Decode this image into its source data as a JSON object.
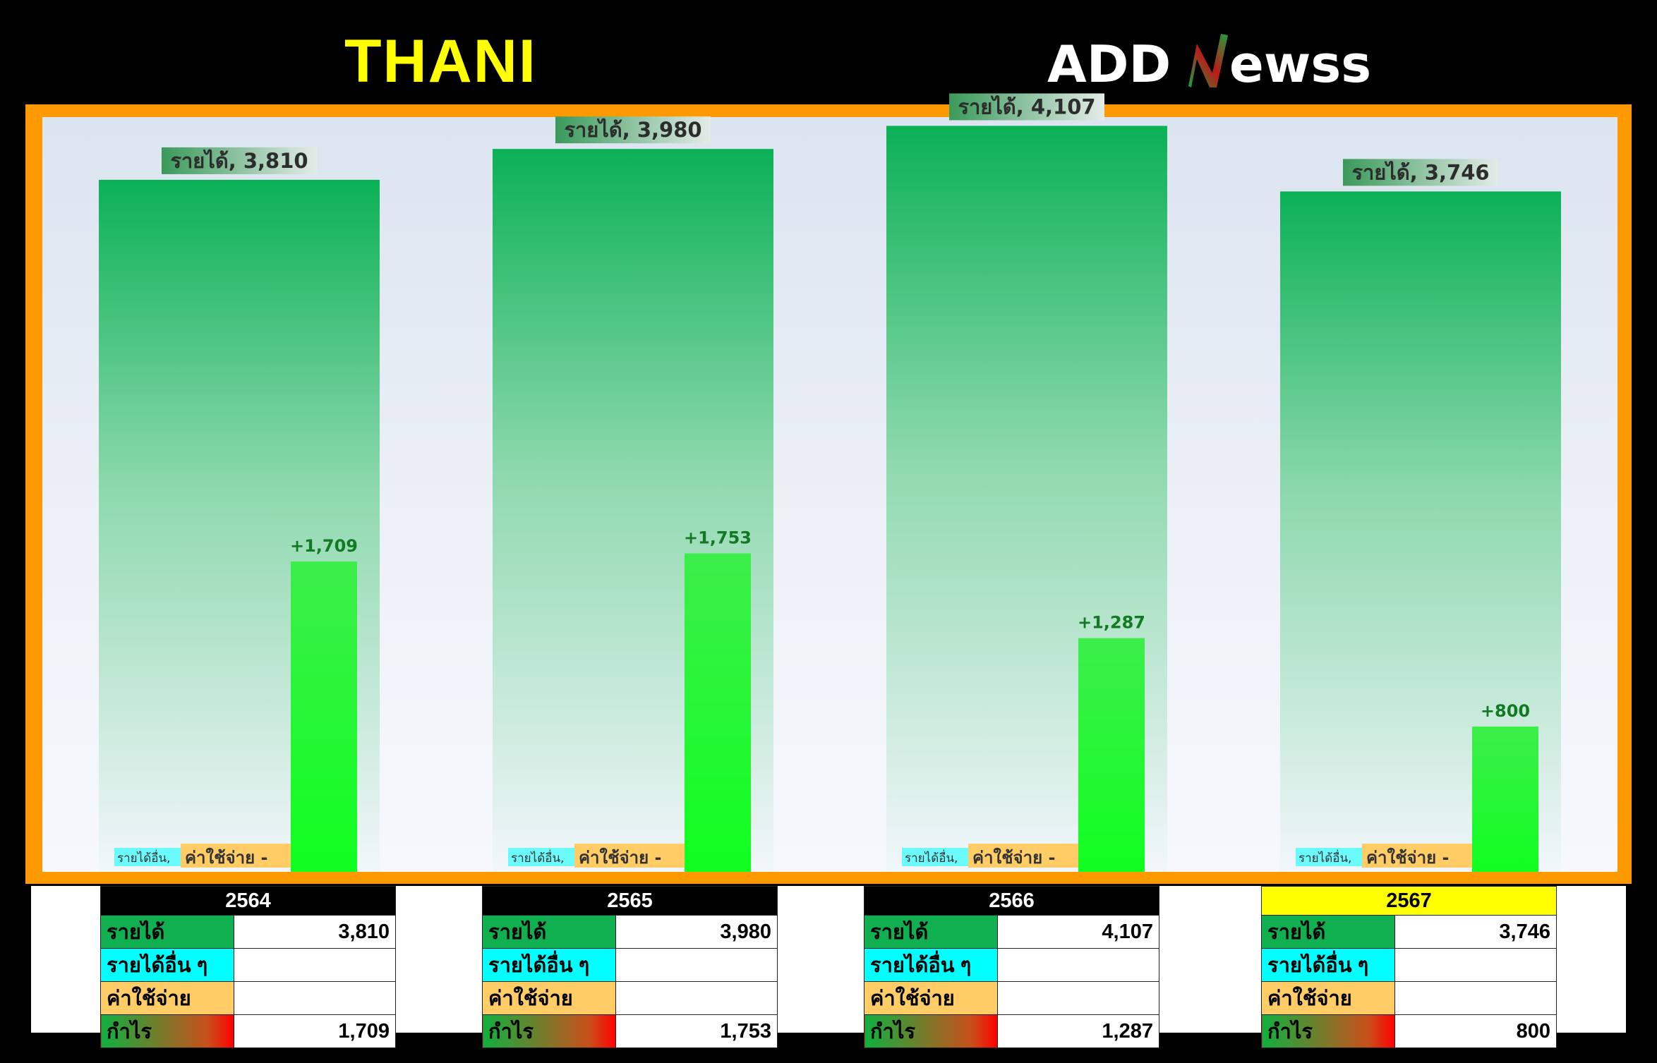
{
  "header": {
    "title": "THANI",
    "logo_text": "ADDNewss"
  },
  "chart_data": {
    "type": "bar",
    "categories": [
      "2564",
      "2565",
      "2566",
      "2567"
    ],
    "series": [
      {
        "name": "รายได้",
        "values": [
          3810,
          3980,
          4107,
          3746
        ]
      },
      {
        "name": "รายได้อื่น",
        "values": [
          null,
          null,
          null,
          null
        ]
      },
      {
        "name": "ค่าใช้จ่าย",
        "values": [
          null,
          null,
          null,
          null
        ]
      },
      {
        "name": "กำไร",
        "values": [
          1709,
          1753,
          1287,
          800
        ]
      }
    ],
    "revenue_labels": [
      "รายได้, 3,810",
      "รายได้, 3,980",
      "รายได้, 4,107",
      "รายได้, 3,746"
    ],
    "profit_labels": [
      "+1,709",
      "+1,753",
      "+1,287",
      "+800"
    ],
    "other_label": "รายได้อื่น,",
    "expense_label": "ค่าใช้จ่าย  -",
    "ylim": [
      0,
      4400
    ],
    "colors": {
      "revenue": "#0bb156",
      "other": "#00ffff",
      "expense": "#ffcc66",
      "profit": "#22ee33",
      "frame": "#ff9900"
    }
  },
  "tables": [
    {
      "year": "2564",
      "highlight": false,
      "rows": [
        {
          "label": "รายได้",
          "value": "3,810"
        },
        {
          "label": "รายได้อื่น ๆ",
          "value": ""
        },
        {
          "label": "ค่าใช้จ่าย",
          "value": ""
        },
        {
          "label": "กำไร",
          "value": "1,709"
        }
      ]
    },
    {
      "year": "2565",
      "highlight": false,
      "rows": [
        {
          "label": "รายได้",
          "value": "3,980"
        },
        {
          "label": "รายได้อื่น ๆ",
          "value": ""
        },
        {
          "label": "ค่าใช้จ่าย",
          "value": ""
        },
        {
          "label": "กำไร",
          "value": "1,753"
        }
      ]
    },
    {
      "year": "2566",
      "highlight": false,
      "rows": [
        {
          "label": "รายได้",
          "value": "4,107"
        },
        {
          "label": "รายได้อื่น ๆ",
          "value": ""
        },
        {
          "label": "ค่าใช้จ่าย",
          "value": ""
        },
        {
          "label": "กำไร",
          "value": "1,287"
        }
      ]
    },
    {
      "year": "2567",
      "highlight": true,
      "rows": [
        {
          "label": "รายได้",
          "value": "3,746"
        },
        {
          "label": "รายได้อื่น ๆ",
          "value": ""
        },
        {
          "label": "ค่าใช้จ่าย",
          "value": ""
        },
        {
          "label": "กำไร",
          "value": "800"
        }
      ]
    }
  ]
}
